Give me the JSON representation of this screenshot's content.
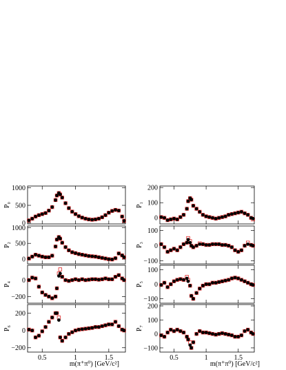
{
  "figure": {
    "xlabel": "m(π⁺π⁰) [GeV/c²]",
    "xlim": [
      0.28,
      1.75
    ],
    "xticks": [
      0.5,
      1,
      1.5
    ],
    "xtick_labels": [
      "0.5",
      "1",
      "1.5"
    ],
    "marker_colors": {
      "data": "#000000",
      "fit": "#dd2222"
    }
  },
  "chart_data": [
    {
      "type": "scatter",
      "ylabel": "P₀",
      "ylim": [
        -30,
        1050
      ],
      "yticks": [
        0,
        500,
        1000
      ],
      "ytick_labels": [
        "0",
        "500",
        "1000"
      ],
      "x": [
        0.3,
        0.35,
        0.4,
        0.45,
        0.5,
        0.55,
        0.6,
        0.65,
        0.7,
        0.72,
        0.75,
        0.77,
        0.8,
        0.85,
        0.9,
        0.95,
        1.0,
        1.05,
        1.1,
        1.15,
        1.2,
        1.25,
        1.3,
        1.35,
        1.4,
        1.45,
        1.5,
        1.55,
        1.6,
        1.65,
        1.7,
        1.73
      ],
      "data": [
        70,
        120,
        180,
        220,
        250,
        280,
        350,
        450,
        650,
        780,
        850,
        810,
        720,
        560,
        420,
        320,
        250,
        190,
        150,
        120,
        100,
        90,
        100,
        120,
        160,
        220,
        290,
        340,
        370,
        350,
        180,
        60
      ],
      "fit": [
        70,
        120,
        180,
        220,
        250,
        280,
        350,
        450,
        650,
        780,
        850,
        810,
        720,
        560,
        420,
        320,
        250,
        190,
        150,
        120,
        100,
        90,
        100,
        120,
        160,
        220,
        290,
        340,
        370,
        350,
        180,
        60
      ]
    },
    {
      "type": "scatter",
      "ylabel": "P₁",
      "ylim": [
        -40,
        210
      ],
      "yticks": [
        0,
        100,
        200
      ],
      "ytick_labels": [
        "0",
        "100",
        "200"
      ],
      "x": [
        0.3,
        0.35,
        0.4,
        0.45,
        0.5,
        0.55,
        0.6,
        0.65,
        0.7,
        0.72,
        0.75,
        0.77,
        0.8,
        0.85,
        0.9,
        0.95,
        1.0,
        1.05,
        1.1,
        1.15,
        1.2,
        1.25,
        1.3,
        1.35,
        1.4,
        1.45,
        1.5,
        1.55,
        1.6,
        1.65,
        1.7,
        1.73
      ],
      "data": [
        5,
        0,
        -15,
        -10,
        -5,
        -10,
        5,
        20,
        60,
        110,
        130,
        120,
        80,
        60,
        40,
        20,
        10,
        5,
        0,
        -5,
        0,
        5,
        10,
        20,
        25,
        30,
        35,
        40,
        30,
        20,
        0,
        -5
      ],
      "fit": [
        5,
        0,
        -15,
        -10,
        -5,
        -10,
        5,
        20,
        60,
        110,
        130,
        120,
        80,
        60,
        40,
        20,
        10,
        5,
        0,
        -5,
        0,
        5,
        10,
        20,
        25,
        30,
        35,
        40,
        30,
        20,
        0,
        -10
      ]
    },
    {
      "type": "scatter",
      "ylabel": "P₂",
      "ylim": [
        -150,
        1050
      ],
      "yticks": [
        0,
        500,
        1000
      ],
      "ytick_labels": [
        "0",
        "500",
        "1000"
      ],
      "x": [
        0.3,
        0.35,
        0.4,
        0.45,
        0.5,
        0.55,
        0.6,
        0.65,
        0.7,
        0.72,
        0.75,
        0.77,
        0.8,
        0.85,
        0.9,
        0.95,
        1.0,
        1.05,
        1.1,
        1.15,
        1.2,
        1.25,
        1.3,
        1.35,
        1.4,
        1.45,
        1.5,
        1.55,
        1.6,
        1.65,
        1.7,
        1.73
      ],
      "data": [
        20,
        80,
        140,
        110,
        80,
        60,
        60,
        110,
        400,
        620,
        700,
        650,
        520,
        380,
        280,
        220,
        190,
        160,
        140,
        120,
        100,
        90,
        80,
        60,
        40,
        20,
        0,
        -10,
        30,
        180,
        120,
        60
      ],
      "fit": [
        20,
        80,
        140,
        110,
        80,
        60,
        60,
        110,
        400,
        620,
        700,
        650,
        520,
        380,
        280,
        220,
        190,
        160,
        140,
        120,
        100,
        90,
        80,
        60,
        40,
        20,
        0,
        -10,
        30,
        180,
        120,
        60
      ]
    },
    {
      "type": "scatter",
      "ylabel": "P₃",
      "ylim": [
        -120,
        130
      ],
      "yticks": [
        -100,
        0,
        100
      ],
      "ytick_labels": [
        "−100",
        "0",
        "100"
      ],
      "x": [
        0.3,
        0.35,
        0.4,
        0.45,
        0.5,
        0.55,
        0.6,
        0.65,
        0.7,
        0.72,
        0.75,
        0.77,
        0.8,
        0.85,
        0.9,
        0.95,
        1.0,
        1.05,
        1.1,
        1.15,
        1.2,
        1.25,
        1.3,
        1.35,
        1.4,
        1.45,
        1.5,
        1.55,
        1.6,
        1.65,
        1.7,
        1.73
      ],
      "data": [
        10,
        -10,
        -40,
        -30,
        -20,
        -30,
        -10,
        10,
        20,
        40,
        20,
        0,
        -10,
        0,
        10,
        10,
        5,
        5,
        10,
        10,
        10,
        5,
        5,
        0,
        -10,
        -30,
        -40,
        -30,
        0,
        10,
        5,
        0
      ],
      "fit": [
        10,
        -10,
        -40,
        -30,
        -20,
        -30,
        -10,
        10,
        20,
        50,
        30,
        0,
        -10,
        0,
        15,
        10,
        5,
        5,
        10,
        10,
        10,
        5,
        5,
        0,
        -10,
        -30,
        -40,
        -30,
        0,
        20,
        5,
        0
      ]
    },
    {
      "type": "scatter",
      "ylabel": "P₄",
      "ylim": [
        -280,
        180
      ],
      "yticks": [
        -200,
        0
      ],
      "ytick_labels": [
        "−200",
        "0"
      ],
      "x": [
        0.3,
        0.35,
        0.4,
        0.45,
        0.5,
        0.55,
        0.6,
        0.65,
        0.7,
        0.72,
        0.75,
        0.77,
        0.8,
        0.85,
        0.9,
        0.95,
        1.0,
        1.05,
        1.1,
        1.15,
        1.2,
        1.25,
        1.3,
        1.35,
        1.4,
        1.45,
        1.5,
        1.55,
        1.6,
        1.65,
        1.7,
        1.73
      ],
      "data": [
        0,
        30,
        20,
        -80,
        -150,
        -180,
        -200,
        -220,
        -200,
        -100,
        50,
        80,
        40,
        0,
        -10,
        0,
        10,
        0,
        10,
        0,
        5,
        10,
        10,
        5,
        10,
        20,
        10,
        10,
        40,
        60,
        20,
        0
      ],
      "fit": [
        0,
        30,
        20,
        -80,
        -150,
        -180,
        -200,
        -220,
        -200,
        -100,
        80,
        130,
        40,
        0,
        -10,
        0,
        10,
        0,
        10,
        0,
        5,
        10,
        10,
        5,
        10,
        20,
        10,
        10,
        40,
        60,
        20,
        0
      ]
    },
    {
      "type": "scatter",
      "ylabel": "P₅",
      "ylim": [
        -130,
        130
      ],
      "yticks": [
        -100,
        0,
        100
      ],
      "ytick_labels": [
        "−100",
        "0",
        "100"
      ],
      "x": [
        0.3,
        0.35,
        0.4,
        0.45,
        0.5,
        0.55,
        0.6,
        0.65,
        0.7,
        0.72,
        0.75,
        0.77,
        0.8,
        0.85,
        0.9,
        0.95,
        1.0,
        1.05,
        1.1,
        1.15,
        1.2,
        1.25,
        1.3,
        1.35,
        1.4,
        1.45,
        1.5,
        1.55,
        1.6,
        1.65,
        1.7,
        1.73
      ],
      "data": [
        -5,
        10,
        -20,
        0,
        20,
        30,
        35,
        30,
        40,
        20,
        -10,
        -80,
        -100,
        -60,
        -30,
        -10,
        0,
        0,
        10,
        10,
        15,
        20,
        25,
        30,
        40,
        45,
        40,
        30,
        20,
        10,
        0,
        -5
      ],
      "fit": [
        -5,
        10,
        -20,
        0,
        20,
        30,
        35,
        30,
        50,
        30,
        -10,
        -80,
        -100,
        -60,
        -30,
        -10,
        0,
        0,
        10,
        10,
        15,
        20,
        25,
        30,
        40,
        45,
        40,
        30,
        20,
        10,
        0,
        -5
      ]
    },
    {
      "type": "scatter",
      "ylabel": "P₆",
      "ylim": [
        -250,
        300
      ],
      "yticks": [
        -200,
        0,
        200
      ],
      "ytick_labels": [
        "−200",
        "0",
        "200"
      ],
      "x": [
        0.3,
        0.35,
        0.4,
        0.45,
        0.5,
        0.55,
        0.6,
        0.65,
        0.7,
        0.72,
        0.75,
        0.77,
        0.8,
        0.85,
        0.9,
        0.95,
        1.0,
        1.05,
        1.1,
        1.15,
        1.2,
        1.25,
        1.3,
        1.35,
        1.4,
        1.45,
        1.5,
        1.55,
        1.6,
        1.65,
        1.7,
        1.73
      ],
      "data": [
        10,
        0,
        -80,
        -60,
        -10,
        40,
        100,
        150,
        200,
        200,
        120,
        -80,
        -120,
        -80,
        -40,
        -20,
        0,
        10,
        15,
        20,
        25,
        30,
        40,
        40,
        50,
        60,
        70,
        70,
        100,
        50,
        10,
        0
      ],
      "fit": [
        10,
        0,
        -80,
        -60,
        -10,
        40,
        100,
        150,
        200,
        200,
        150,
        -80,
        -120,
        -80,
        -40,
        -20,
        0,
        10,
        15,
        20,
        25,
        30,
        40,
        40,
        50,
        60,
        70,
        70,
        100,
        50,
        10,
        0
      ]
    },
    {
      "type": "scatter",
      "ylabel": "P₇",
      "ylim": [
        -130,
        210
      ],
      "yticks": [
        -100,
        0,
        100,
        200
      ],
      "ytick_labels": [
        "−100",
        "0",
        "100",
        "200"
      ],
      "x": [
        0.3,
        0.35,
        0.4,
        0.45,
        0.5,
        0.55,
        0.6,
        0.65,
        0.7,
        0.72,
        0.75,
        0.77,
        0.8,
        0.85,
        0.9,
        0.95,
        1.0,
        1.05,
        1.1,
        1.15,
        1.2,
        1.25,
        1.3,
        1.35,
        1.4,
        1.45,
        1.5,
        1.55,
        1.6,
        1.65,
        1.7,
        1.73
      ],
      "data": [
        -10,
        -20,
        10,
        30,
        20,
        30,
        20,
        10,
        -20,
        -40,
        -80,
        -100,
        -60,
        0,
        20,
        10,
        10,
        5,
        0,
        -5,
        0,
        5,
        0,
        -5,
        -10,
        -20,
        -20,
        -10,
        20,
        30,
        10,
        0
      ],
      "fit": [
        -10,
        -20,
        10,
        30,
        20,
        30,
        20,
        10,
        -20,
        -40,
        -60,
        -100,
        -60,
        0,
        20,
        10,
        10,
        5,
        0,
        -5,
        0,
        5,
        0,
        -5,
        -10,
        -20,
        -20,
        -10,
        20,
        30,
        10,
        0
      ]
    }
  ]
}
